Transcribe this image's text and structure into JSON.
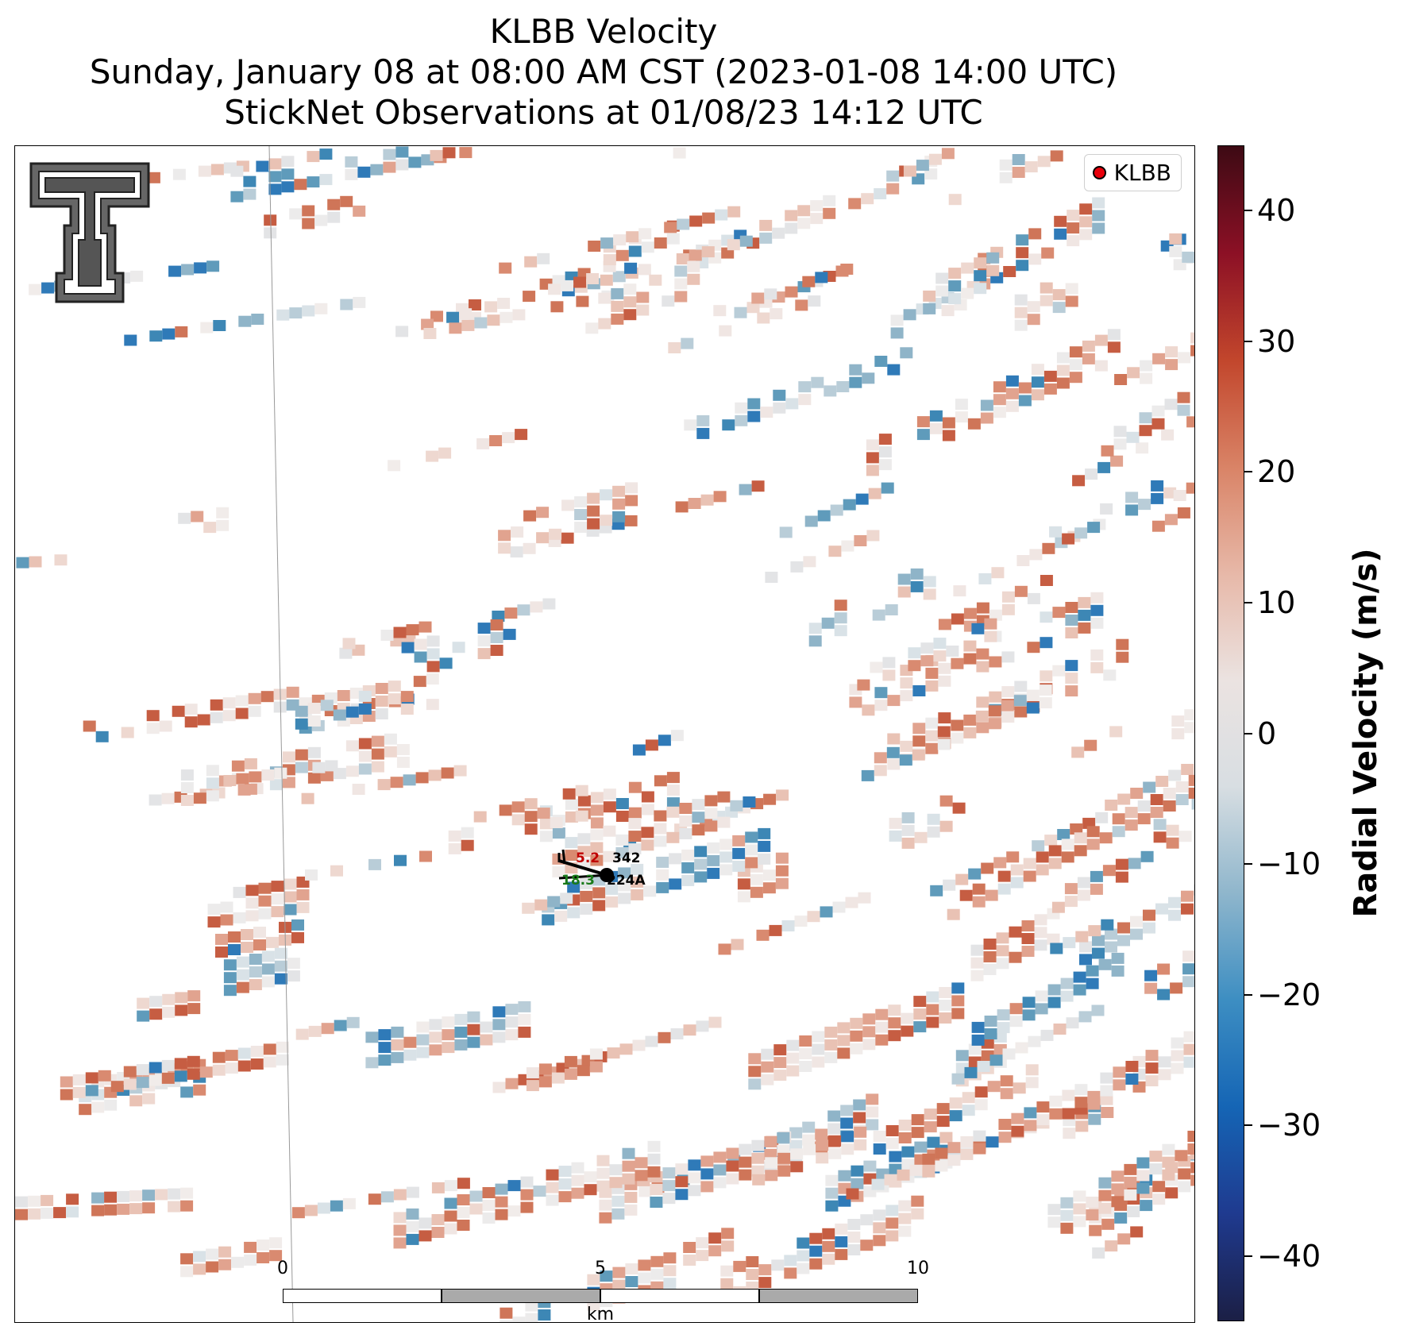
{
  "title": {
    "line1": "KLBB Velocity",
    "line2": "Sunday, January 08 at 08:00 AM CST (2023-01-08 14:00 UTC)",
    "line3": "StickNet Observations at 01/08/23 14:12 UTC"
  },
  "legend": {
    "label": "KLBB",
    "marker_color": "#e8000b"
  },
  "logo": {
    "icon": "texas-tech-double-t-logo"
  },
  "stations": [
    {
      "id": "342",
      "value": "5.2",
      "value_color": "#c00000"
    },
    {
      "id": "224A",
      "value": "18.3",
      "value_color": "#1a7a1a"
    }
  ],
  "scale_bar": {
    "ticks": [
      "0",
      "5",
      "10"
    ],
    "unit": "km"
  },
  "colorbar": {
    "title": "Radial Velocity (m/s)",
    "range": [
      -45,
      45
    ],
    "tick_labels": [
      "40",
      "30",
      "20",
      "10",
      "0",
      "−10",
      "−20",
      "−30",
      "−40"
    ],
    "tick_values": [
      40,
      30,
      20,
      10,
      0,
      -10,
      -20,
      -30,
      -40
    ],
    "colors": [
      "#1b1f45",
      "#1f3a8f",
      "#1565b5",
      "#3d8ec2",
      "#8fb6cc",
      "#d8dee2",
      "#ebe3e1",
      "#e7b8a8",
      "#d98366",
      "#c2462c",
      "#8c1025",
      "#3d0a14"
    ]
  },
  "chart_data": {
    "type": "heatmap",
    "title": "KLBB Velocity",
    "variable": "Radial Velocity",
    "units": "m/s",
    "vmin": -45,
    "vmax": 45,
    "dominant_range": [
      -20,
      25
    ],
    "notes": "Radar radial-velocity field with mostly weak outbound (reddish, 5-20 m/s) and weak inbound (bluish, -5 to -20 m/s) echoes"
  }
}
